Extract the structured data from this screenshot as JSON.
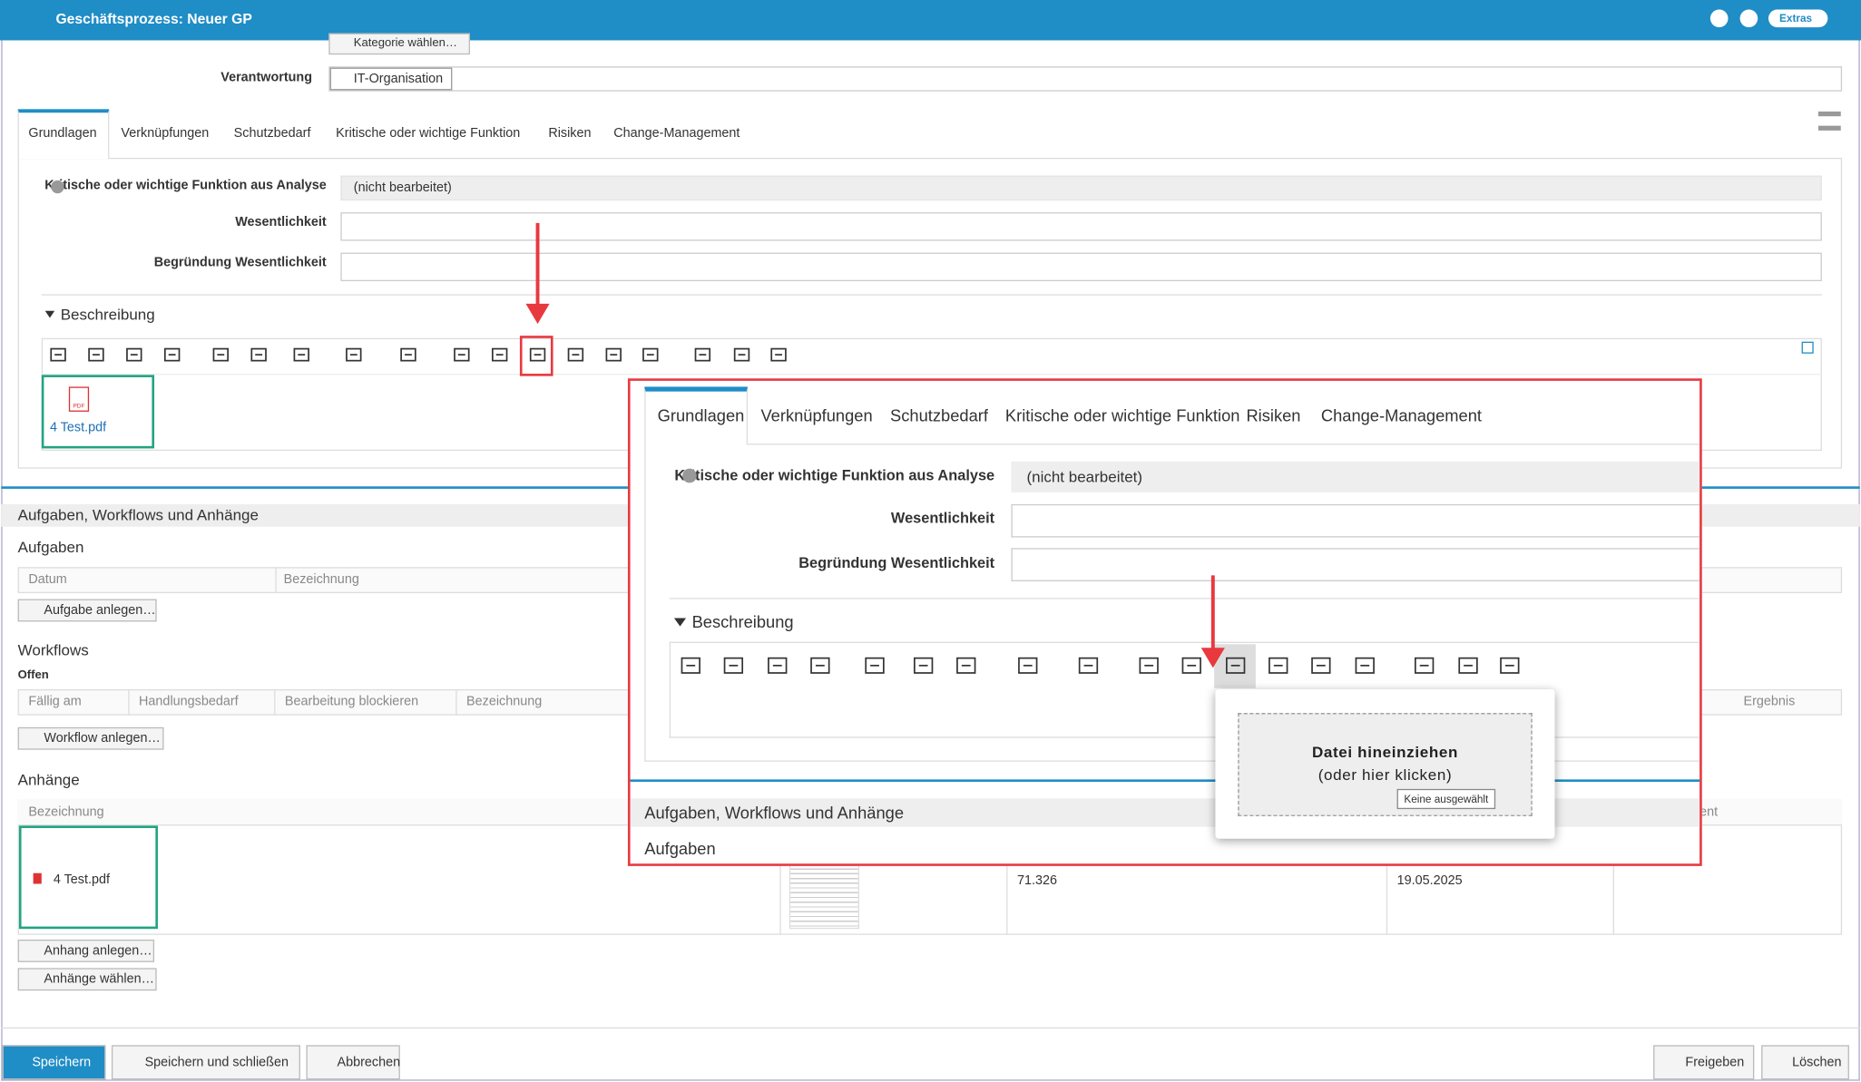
{
  "header": {
    "title": "Geschäftsprozess: Neuer GP",
    "extras": "Extras"
  },
  "form": {
    "category_button": "Kategorie wählen…",
    "responsibility_label": "Verantwortung",
    "responsibility_value": "IT-Organisation"
  },
  "tabs": [
    "Grundlagen",
    "Verknüpfungen",
    "Schutzbedarf",
    "Kritische oder wichtige Funktion",
    "Risiken",
    "Change-Management"
  ],
  "fields": [
    {
      "label": "Kritische oder wichtige Funktion aus Analyse",
      "value": "(nicht bearbeitet)"
    },
    {
      "label": "Wesentlichkeit"
    },
    {
      "label": "Begründung Wesentlichkeit"
    }
  ],
  "description": {
    "title": "Beschreibung",
    "icon_label": "PDF",
    "attachment": "4 Test.pdf"
  },
  "section": {
    "title": "Aufgaben, Workflows und Anhänge",
    "tasks": {
      "title": "Aufgaben",
      "columns": [
        "Datum",
        "Bezeichnung"
      ],
      "button": "Aufgabe anlegen…"
    },
    "workflows": {
      "title": "Workflows",
      "subtitle": "Offen",
      "columns": [
        "Fällig am",
        "Handlungsbedarf",
        "Bearbeitung blockieren",
        "Bezeichnung",
        "Ergebnis"
      ],
      "button": "Workflow anlegen…"
    },
    "attachments": {
      "title": "Anhänge",
      "columns": [
        "Bezeichnung",
        "ent"
      ],
      "row": [
        "4 Test.pdf",
        "71.326",
        "19.05.2025"
      ],
      "buttons": [
        "Anhang anlegen…",
        "Anhänge wählen…"
      ]
    }
  },
  "footer": {
    "left": [
      "Speichern",
      "Speichern und schließen",
      "Abbrechen"
    ],
    "right": [
      "Freigeben",
      "Löschen"
    ]
  },
  "zoom": {
    "upload": {
      "title": "Datei hineinziehen",
      "hint": "(oder hier klicken)",
      "file_status": "Keine ausgewählt"
    }
  }
}
